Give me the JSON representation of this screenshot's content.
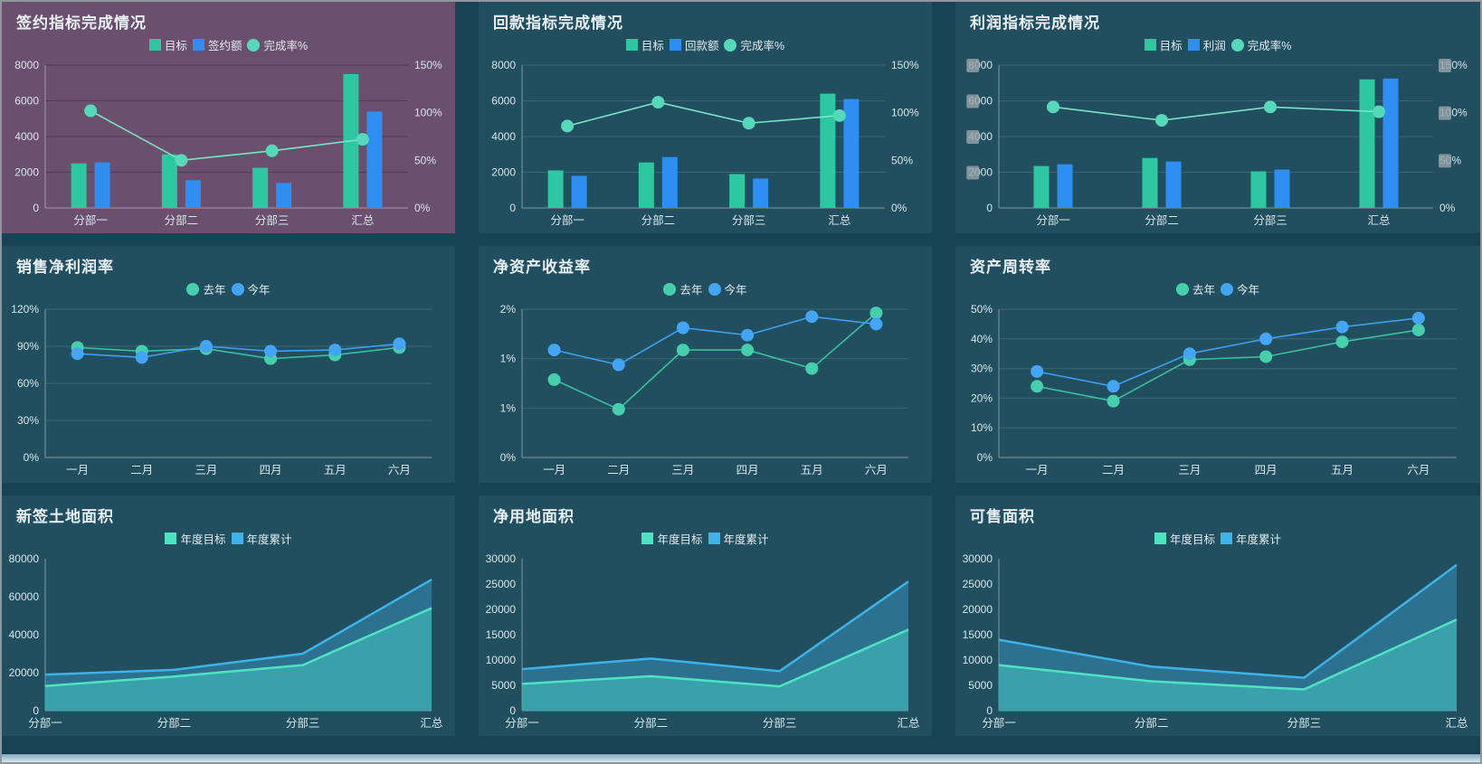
{
  "chart_data": [
    {
      "id": "contract-indicator",
      "title": "签约指标完成情况",
      "type": "bar-line",
      "panel_color": "#6b4f6e",
      "grid_dark": true,
      "categories": [
        "分部一",
        "分部二",
        "分部三",
        "汇总"
      ],
      "series": [
        {
          "name": "目标",
          "type": "bar",
          "marker": "square",
          "color": "#2dc7a1",
          "values": [
            2500,
            3000,
            2250,
            7500
          ]
        },
        {
          "name": "签约额",
          "type": "bar",
          "marker": "square",
          "color": "#2e8ef2",
          "values": [
            2550,
            1550,
            1400,
            5400
          ]
        },
        {
          "name": "完成率%",
          "type": "line",
          "marker": "circle",
          "axis": "right",
          "color": "#7de2c6",
          "marker_color": "#58d8ba",
          "values": [
            102,
            50,
            60,
            72
          ]
        }
      ],
      "left_axis": {
        "min": 0,
        "max": 8000,
        "ticks": [
          "8000",
          "6000",
          "4000",
          "2000",
          "0"
        ]
      },
      "right_axis": {
        "min": 0,
        "max": 150,
        "ticks": [
          "150%",
          "100%",
          "50%",
          "0%"
        ]
      },
      "grid": true
    },
    {
      "id": "payment-indicator",
      "title": "回款指标完成情况",
      "type": "bar-line",
      "categories": [
        "分部一",
        "分部二",
        "分部三",
        "汇总"
      ],
      "series": [
        {
          "name": "目标",
          "type": "bar",
          "marker": "square",
          "color": "#2dc7a1",
          "values": [
            2100,
            2550,
            1900,
            6400
          ]
        },
        {
          "name": "回款额",
          "type": "bar",
          "marker": "square",
          "color": "#2e8ef2",
          "values": [
            1800,
            2850,
            1650,
            6100
          ]
        },
        {
          "name": "完成率%",
          "type": "line",
          "marker": "circle",
          "axis": "right",
          "color": "#7de2c6",
          "marker_color": "#58d8ba",
          "values": [
            86,
            111,
            89,
            97
          ]
        }
      ],
      "left_axis": {
        "min": 0,
        "max": 8000,
        "ticks": [
          "8000",
          "6000",
          "4000",
          "2000",
          "0"
        ]
      },
      "right_axis": {
        "min": 0,
        "max": 150,
        "ticks": [
          "150%",
          "100%",
          "50%",
          "0%"
        ]
      },
      "grid": true
    },
    {
      "id": "profit-indicator",
      "title": "利润指标完成情况",
      "type": "bar-line",
      "categories": [
        "分部一",
        "分部二",
        "分部三",
        "汇总"
      ],
      "series": [
        {
          "name": "目标",
          "type": "bar",
          "marker": "square",
          "color": "#2dc7a1",
          "values": [
            2350,
            2800,
            2050,
            7200
          ]
        },
        {
          "name": "利润",
          "type": "bar",
          "marker": "square",
          "color": "#2e8ef2",
          "values": [
            2450,
            2600,
            2150,
            7250
          ]
        },
        {
          "name": "完成率%",
          "type": "line",
          "marker": "circle",
          "axis": "right",
          "color": "#7de2c6",
          "marker_color": "#58d8ba",
          "values": [
            106,
            92,
            106,
            101
          ]
        }
      ],
      "left_axis": {
        "min": 0,
        "max": 8000,
        "ticks": [
          "8000",
          "6000",
          "4000",
          "2000",
          "0"
        ],
        "masked": true
      },
      "right_axis": {
        "min": 0,
        "max": 150,
        "ticks": [
          "150%",
          "100%",
          "50%",
          "0%"
        ],
        "masked": true
      },
      "grid": true
    },
    {
      "id": "sales-net-margin",
      "title": "销售净利润率",
      "type": "line",
      "categories": [
        "一月",
        "二月",
        "三月",
        "四月",
        "五月",
        "六月"
      ],
      "series": [
        {
          "name": "去年",
          "type": "line",
          "marker": "circle",
          "color": "#3cbfa0",
          "marker_color": "#47cfad",
          "values": [
            89,
            86,
            88,
            80,
            83,
            89
          ]
        },
        {
          "name": "今年",
          "type": "line",
          "marker": "circle",
          "color": "#3e9ef0",
          "marker_color": "#44a5f5",
          "values": [
            84,
            81,
            90,
            86,
            87,
            92
          ]
        }
      ],
      "left_axis": {
        "min": 0,
        "max": 120,
        "ticks": [
          "120%",
          "90%",
          "60%",
          "30%",
          "0%"
        ]
      },
      "grid": true
    },
    {
      "id": "return-on-equity",
      "title": "净资产收益率",
      "type": "line",
      "categories": [
        "一月",
        "二月",
        "三月",
        "四月",
        "五月",
        "六月"
      ],
      "series": [
        {
          "name": "去年",
          "type": "line",
          "marker": "circle",
          "color": "#3cbfa0",
          "marker_color": "#47cfad",
          "values": [
            1.05,
            0.65,
            1.45,
            1.45,
            1.2,
            1.95
          ]
        },
        {
          "name": "今年",
          "type": "line",
          "marker": "circle",
          "color": "#3e9ef0",
          "marker_color": "#44a5f5",
          "values": [
            1.45,
            1.25,
            1.75,
            1.65,
            1.9,
            1.8
          ]
        }
      ],
      "left_axis": {
        "min": 0,
        "max": 2,
        "ticks": [
          "2%",
          "1%",
          "1%",
          "0%"
        ]
      },
      "grid": true
    },
    {
      "id": "asset-turnover",
      "title": "资产周转率",
      "type": "line",
      "categories": [
        "一月",
        "二月",
        "三月",
        "四月",
        "五月",
        "六月"
      ],
      "series": [
        {
          "name": "去年",
          "type": "line",
          "marker": "circle",
          "color": "#3cbfa0",
          "marker_color": "#47cfad",
          "values": [
            24,
            19,
            33,
            34,
            39,
            43
          ]
        },
        {
          "name": "今年",
          "type": "line",
          "marker": "circle",
          "color": "#3e9ef0",
          "marker_color": "#44a5f5",
          "values": [
            29,
            24,
            35,
            40,
            44,
            47
          ]
        }
      ],
      "left_axis": {
        "min": 0,
        "max": 50,
        "ticks": [
          "50%",
          "40%",
          "30%",
          "20%",
          "10%",
          "0%"
        ]
      },
      "grid": true
    },
    {
      "id": "new-signed-land-area",
      "title": "新签土地面积",
      "type": "area",
      "categories": [
        "分部一",
        "分部二",
        "分部三",
        "汇总"
      ],
      "series": [
        {
          "name": "年度目标",
          "type": "area",
          "marker": "square",
          "color": "#50e3c2",
          "fill": "#3aa392",
          "fill_opacity": 0.9,
          "values": [
            13000,
            18000,
            24000,
            54000
          ]
        },
        {
          "name": "年度累计",
          "type": "area",
          "marker": "square",
          "color": "#3fb2e8",
          "fill": "#3fa9dd",
          "fill_opacity": 0.38,
          "values": [
            19000,
            21500,
            30000,
            69000
          ]
        }
      ],
      "left_axis": {
        "min": 0,
        "max": 80000,
        "ticks": [
          "80000",
          "60000",
          "40000",
          "20000",
          "0"
        ]
      },
      "grid": false
    },
    {
      "id": "net-land-area",
      "title": "净用地面积",
      "type": "area",
      "categories": [
        "分部一",
        "分部二",
        "分部三",
        "汇总"
      ],
      "series": [
        {
          "name": "年度目标",
          "type": "area",
          "marker": "square",
          "color": "#50e3c2",
          "fill": "#3aa392",
          "fill_opacity": 0.9,
          "values": [
            5300,
            6800,
            4800,
            16000
          ]
        },
        {
          "name": "年度累计",
          "type": "area",
          "marker": "square",
          "color": "#3fb2e8",
          "fill": "#3fa9dd",
          "fill_opacity": 0.38,
          "values": [
            8200,
            10300,
            7800,
            25500
          ]
        }
      ],
      "left_axis": {
        "min": 0,
        "max": 30000,
        "ticks": [
          "30000",
          "25000",
          "20000",
          "15000",
          "10000",
          "5000",
          "0"
        ]
      },
      "grid": false
    },
    {
      "id": "saleable-area",
      "title": "可售面积",
      "type": "area",
      "categories": [
        "分部一",
        "分部二",
        "分部三",
        "汇总"
      ],
      "series": [
        {
          "name": "年度目标",
          "type": "area",
          "marker": "square",
          "color": "#50e3c2",
          "fill": "#3aa392",
          "fill_opacity": 0.9,
          "values": [
            9000,
            5800,
            4200,
            18000
          ]
        },
        {
          "name": "年度累计",
          "type": "area",
          "marker": "square",
          "color": "#3fb2e8",
          "fill": "#3fa9dd",
          "fill_opacity": 0.38,
          "values": [
            14000,
            8700,
            6500,
            28800
          ]
        }
      ],
      "left_axis": {
        "min": 0,
        "max": 30000,
        "ticks": [
          "30000",
          "25000",
          "20000",
          "15000",
          "10000",
          "5000",
          "0"
        ]
      },
      "grid": false
    }
  ],
  "theme": {
    "background": "#174355",
    "panel": "#214f60",
    "panel_accent": "#6b4f6e",
    "text": "#e9f0f4",
    "axis_text": "#d8e6ec",
    "mask_box": "#98a2a9"
  }
}
